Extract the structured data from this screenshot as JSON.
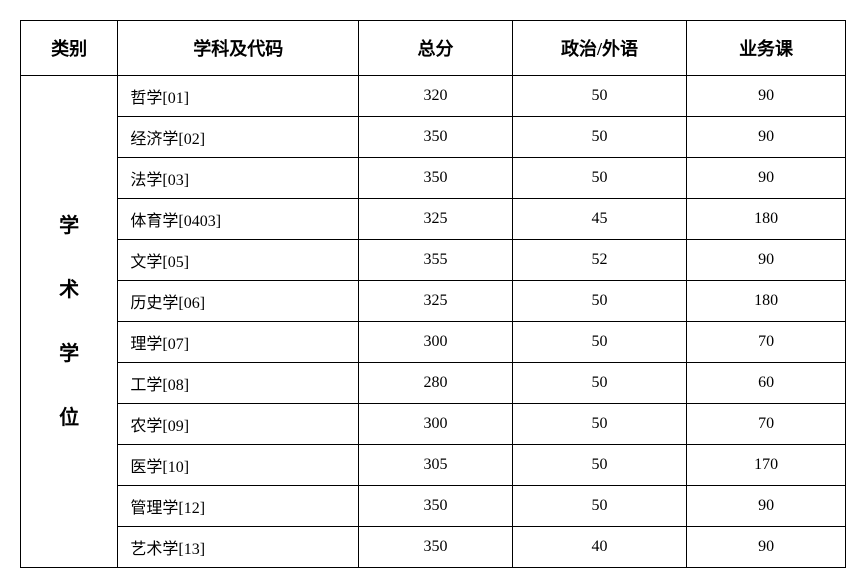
{
  "headers": {
    "category": "类别",
    "subject": "学科及代码",
    "total": "总分",
    "politics": "政治/外语",
    "professional": "业务课"
  },
  "category_label": "学\n术\n学\n位",
  "rows": [
    {
      "subject": "哲学[01]",
      "total": "320",
      "politics": "50",
      "professional": "90"
    },
    {
      "subject": "经济学[02]",
      "total": "350",
      "politics": "50",
      "professional": "90"
    },
    {
      "subject": "法学[03]",
      "total": "350",
      "politics": "50",
      "professional": "90"
    },
    {
      "subject": "体育学[0403]",
      "total": "325",
      "politics": "45",
      "professional": "180"
    },
    {
      "subject": "文学[05]",
      "total": "355",
      "politics": "52",
      "professional": "90"
    },
    {
      "subject": "历史学[06]",
      "total": "325",
      "politics": "50",
      "professional": "180"
    },
    {
      "subject": "理学[07]",
      "total": "300",
      "politics": "50",
      "professional": "70"
    },
    {
      "subject": "工学[08]",
      "total": "280",
      "politics": "50",
      "professional": "60"
    },
    {
      "subject": "农学[09]",
      "total": "300",
      "politics": "50",
      "professional": "70"
    },
    {
      "subject": "医学[10]",
      "total": "305",
      "politics": "50",
      "professional": "170"
    },
    {
      "subject": "管理学[12]",
      "total": "350",
      "politics": "50",
      "professional": "90"
    },
    {
      "subject": "艺术学[13]",
      "total": "350",
      "politics": "40",
      "professional": "90"
    }
  ]
}
